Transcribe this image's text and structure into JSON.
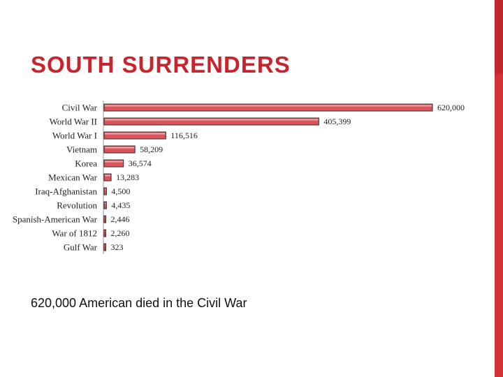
{
  "slide": {
    "title": "SOUTH SURRENDERS",
    "caption": "620,000 American died in the Civil War"
  },
  "colors": {
    "title": "#c7252d",
    "accent": "#d03235",
    "bar_fill": "#d9545a",
    "bar_stroke": "#3a2a2a"
  },
  "chart_data": {
    "type": "bar",
    "orientation": "horizontal",
    "categories": [
      "Civil War",
      "World War II",
      "World War I",
      "Vietnam",
      "Korea",
      "Mexican War",
      "Iraq-Afghanistan",
      "Revolution",
      "Spanish-American War",
      "War of 1812",
      "Gulf War"
    ],
    "values": [
      620000,
      405399,
      116516,
      58209,
      36574,
      13283,
      4500,
      4435,
      2446,
      2260,
      323
    ],
    "value_labels": [
      "620,000",
      "405,399",
      "116,516",
      "58,209",
      "36,574",
      "13,283",
      "4,500",
      "4,435",
      "2,446",
      "2,260",
      "323"
    ],
    "title": "",
    "xlabel": "",
    "ylabel": "",
    "xlim": [
      0,
      620000
    ],
    "grid": false,
    "legend": "none"
  }
}
